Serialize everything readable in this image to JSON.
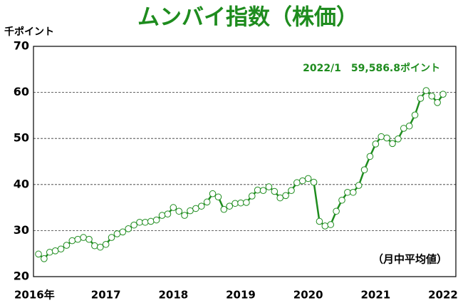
{
  "chart_data": {
    "type": "line",
    "title": "ムンバイ指数（株価）",
    "y_axis_label": "千ポイント",
    "annotation": "2022/1　59,586.8ポイント",
    "note": "（月中平均値）",
    "categories": [
      "2016年",
      null,
      null,
      null,
      null,
      null,
      null,
      null,
      null,
      null,
      null,
      null,
      "2017",
      null,
      null,
      null,
      null,
      null,
      null,
      null,
      null,
      null,
      null,
      null,
      "2018",
      null,
      null,
      null,
      null,
      null,
      null,
      null,
      null,
      null,
      null,
      null,
      "2019",
      null,
      null,
      null,
      null,
      null,
      null,
      null,
      null,
      null,
      null,
      null,
      "2020",
      null,
      null,
      null,
      null,
      null,
      null,
      null,
      null,
      null,
      null,
      null,
      "2021",
      null,
      null,
      null,
      null,
      null,
      null,
      null,
      null,
      null,
      null,
      null,
      "2022"
    ],
    "series": [
      {
        "name": "ムンバイ指数",
        "color": "#1e8c1e",
        "values": [
          24.9,
          23.9,
          25.3,
          25.6,
          26.0,
          26.8,
          27.8,
          28.1,
          28.5,
          28.1,
          26.7,
          26.4,
          27.0,
          28.5,
          29.3,
          29.7,
          30.4,
          31.2,
          31.8,
          31.8,
          32.0,
          32.3,
          33.3,
          33.6,
          35.0,
          34.2,
          33.3,
          34.3,
          34.8,
          35.3,
          36.2,
          38.0,
          37.3,
          34.6,
          35.3,
          35.9,
          36.0,
          36.1,
          37.5,
          38.8,
          38.7,
          39.5,
          38.5,
          37.1,
          37.6,
          38.7,
          40.4,
          40.8,
          41.3,
          40.5,
          32.0,
          31.0,
          31.3,
          34.2,
          36.6,
          38.3,
          38.3,
          39.8,
          43.2,
          46.1,
          48.8,
          50.4,
          50.1,
          48.9,
          49.9,
          52.2,
          52.7,
          55.1,
          58.7,
          60.4,
          59.2,
          57.8,
          59.6
        ]
      }
    ],
    "ylim": [
      20,
      70
    ],
    "yticks": [
      20,
      30,
      40,
      50,
      60,
      70
    ],
    "grid": true
  }
}
